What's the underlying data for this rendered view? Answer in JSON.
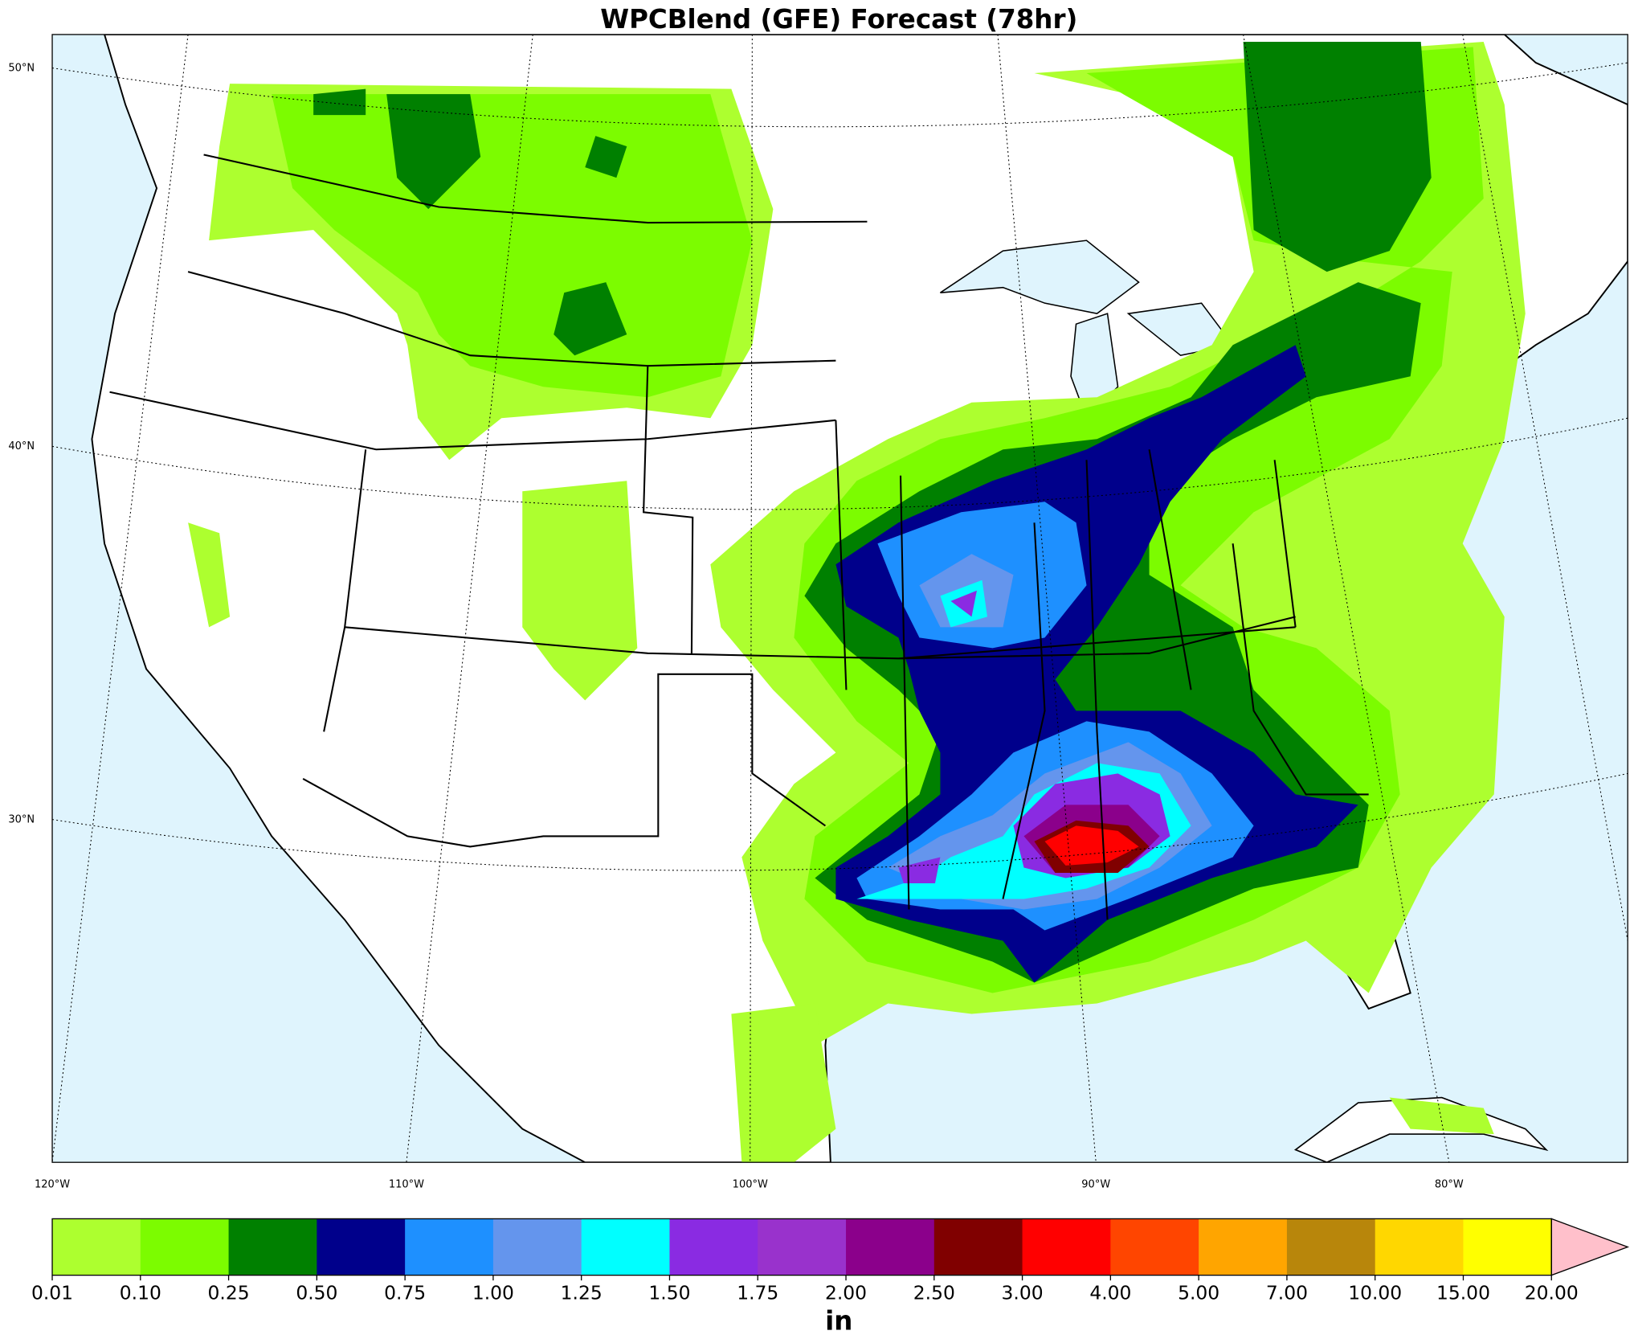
{
  "title": "WPCBlend (GFE) Forecast (78hr)",
  "latitude_labels": [
    "50°N",
    "40°N",
    "30°N"
  ],
  "longitude_labels": [
    "120°W",
    "110°W",
    "100°W",
    "90°W",
    "80°W"
  ],
  "colorbar": {
    "labels": [
      "0.01",
      "0.10",
      "0.25",
      "0.50",
      "0.75",
      "1.00",
      "1.25",
      "1.50",
      "1.75",
      "2.00",
      "2.50",
      "3.00",
      "4.00",
      "5.00",
      "7.00",
      "10.00",
      "15.00",
      "20.00"
    ],
    "colors": [
      "#adff2f",
      "#7cfc00",
      "#008000",
      "#00008b",
      "#1e90ff",
      "#6495ed",
      "#00ffff",
      "#8a2be2",
      "#9932cc",
      "#8b008b",
      "#800000",
      "#ff0000",
      "#ff4500",
      "#ffa500",
      "#b8860b",
      "#ffd700",
      "#ffff00"
    ],
    "extend_color": "#ffc0cb",
    "unit": "in"
  }
}
